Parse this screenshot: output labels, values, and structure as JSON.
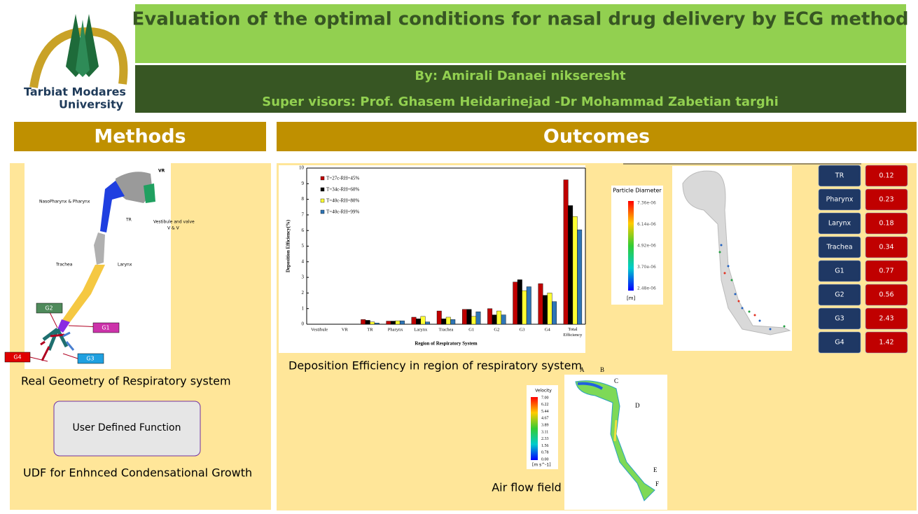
{
  "logo": {
    "line1": "Tarbiat Modares",
    "line2": "University"
  },
  "header": {
    "title": "Evaluation of the optimal conditions for nasal drug delivery by ECG method",
    "author": "By: Amirali Danaei nikseresht",
    "supervisors": "Super visors: Prof. Ghasem Heidarinejad -Dr Mohammad Zabetian targhi"
  },
  "methods": {
    "heading": "Methods",
    "geometry_labels": {
      "vr": "VR",
      "nasopharynx": "NasoPharynx & Pharynx",
      "tr": "TR",
      "vestibule": "Vestibule and valve",
      "vv": "V & V",
      "trachea": "Trachea",
      "larynx": "Larynx",
      "g2": "G2",
      "g1": "G1",
      "g4": "G4",
      "g3": "G3"
    },
    "caption": "Real Geometry of Respiratory system",
    "udf_box": "User Defined Function",
    "udf_caption": "UDF for Enhnced Condensational Growth"
  },
  "outcomes": {
    "heading": "Outcomes",
    "chart_caption": "Deposition Efficiency in region of respiratory system",
    "particle_legend": {
      "title": "Particle Diameter",
      "ticks": [
        "7.36e-06",
        "6.14e-06",
        "4.92e-06",
        "3.70e-06",
        "2.48e-06"
      ],
      "unit": "[m]"
    },
    "velocity_legend": {
      "title": "Velocity",
      "ticks": [
        "7.00",
        "6.22",
        "5.44",
        "4.67",
        "3.89",
        "3.11",
        "2.33",
        "1.56",
        "0.78",
        "0.00"
      ],
      "unit": "[m s^-1]"
    },
    "flow_labels": [
      "A",
      "B",
      "C",
      "D",
      "E",
      "F"
    ],
    "flow_caption": "Air flow field",
    "table": {
      "rows": [
        [
          "TR",
          0.12
        ],
        [
          "Pharynx",
          0.23
        ],
        [
          "Larynx",
          0.18
        ],
        [
          "Trachea",
          0.34
        ],
        [
          "G1",
          0.77
        ],
        [
          "G2",
          0.56
        ],
        [
          "G3",
          2.43
        ],
        [
          "G4",
          1.42
        ]
      ]
    }
  },
  "chart_data": {
    "type": "bar",
    "x_label": "Region of Respiratory System",
    "y_label": "Deposition Efficiency(%)",
    "categories": [
      "Vestibule",
      "VR",
      "TR",
      "Pharynx",
      "Larynx",
      "Trachea",
      "G1",
      "G2",
      "G3",
      "G4",
      "Total Efficiency"
    ],
    "series": [
      {
        "name": "T=27c-RH=45%",
        "color": "#c00000",
        "values": [
          0,
          0,
          0.3,
          0.2,
          0.45,
          0.85,
          0.95,
          1.0,
          2.7,
          2.6,
          9.25
        ]
      },
      {
        "name": "T=34c-RH=60%",
        "color": "#000000",
        "values": [
          0,
          0,
          0.25,
          0.2,
          0.35,
          0.35,
          0.95,
          0.6,
          2.85,
          1.85,
          7.6
        ]
      },
      {
        "name": "T=40c-RH=80%",
        "color": "#ffff33",
        "values": [
          0,
          0,
          0.15,
          0.22,
          0.5,
          0.45,
          0.5,
          0.85,
          2.15,
          2.0,
          6.9
        ]
      },
      {
        "name": "T=40c-RH=99%",
        "color": "#2e75b6",
        "values": [
          0,
          0,
          0.08,
          0.22,
          0.15,
          0.3,
          0.8,
          0.6,
          2.4,
          1.45,
          6.05
        ]
      }
    ],
    "ylim": [
      0,
      10
    ],
    "yticks": [
      0,
      1,
      2,
      3,
      4,
      5,
      6,
      7,
      8,
      9,
      10
    ],
    "grid": false,
    "legend": "upper-left"
  }
}
